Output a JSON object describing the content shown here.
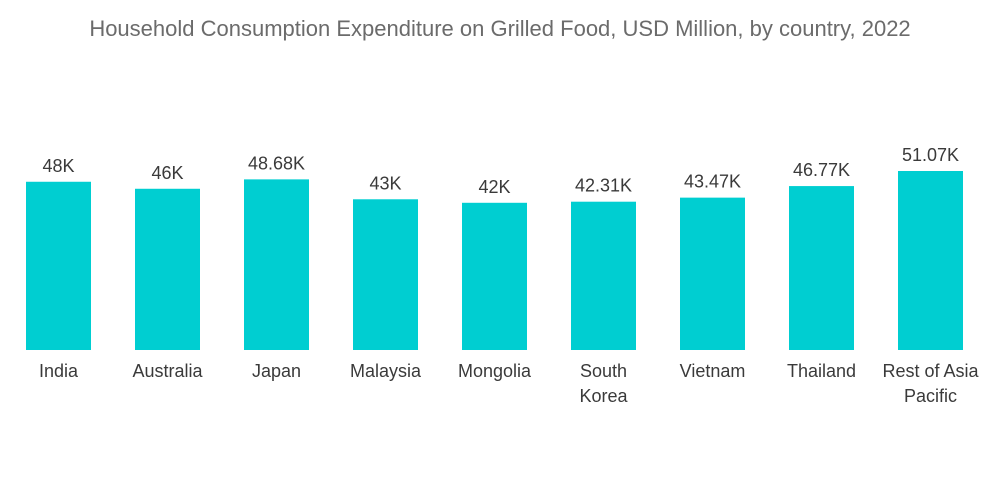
{
  "chart_data": {
    "type": "bar",
    "title": "Household Consumption Expenditure on Grilled Food, USD Million, by country, 2022",
    "categories": [
      "India",
      "Australia",
      "Japan",
      "Malaysia",
      "Mongolia",
      "South Korea",
      "Vietnam",
      "Thailand",
      "Rest of Asia Pacific"
    ],
    "category_lines": [
      [
        "India"
      ],
      [
        "Australia"
      ],
      [
        "Japan"
      ],
      [
        "Malaysia"
      ],
      [
        "Mongolia"
      ],
      [
        "South",
        "Korea"
      ],
      [
        "Vietnam"
      ],
      [
        "Thailand"
      ],
      [
        "Rest of Asia",
        "Pacific"
      ]
    ],
    "values": [
      48000,
      46000,
      48680,
      43000,
      42000,
      42310,
      43470,
      46770,
      51070
    ],
    "data_labels": [
      "48K",
      "46K",
      "48.68K",
      "43K",
      "42K",
      "42.31K",
      "43.47K",
      "46.77K",
      "51.07K"
    ],
    "xlabel": "",
    "ylabel": "",
    "ylim": [
      0,
      51070
    ],
    "grid": false,
    "colors": {
      "bar": "#00CED1",
      "title": "#6b6b6b",
      "text": "#3a3a3a"
    }
  }
}
